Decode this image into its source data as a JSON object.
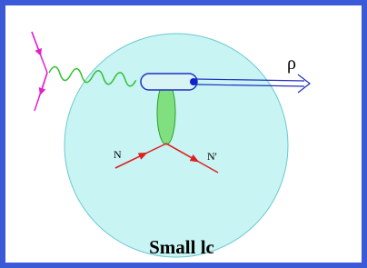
{
  "labels": {
    "rho": "ρ",
    "nucleon_in": "N",
    "nucleon_out": "N'"
  },
  "caption": "Small lc"
}
